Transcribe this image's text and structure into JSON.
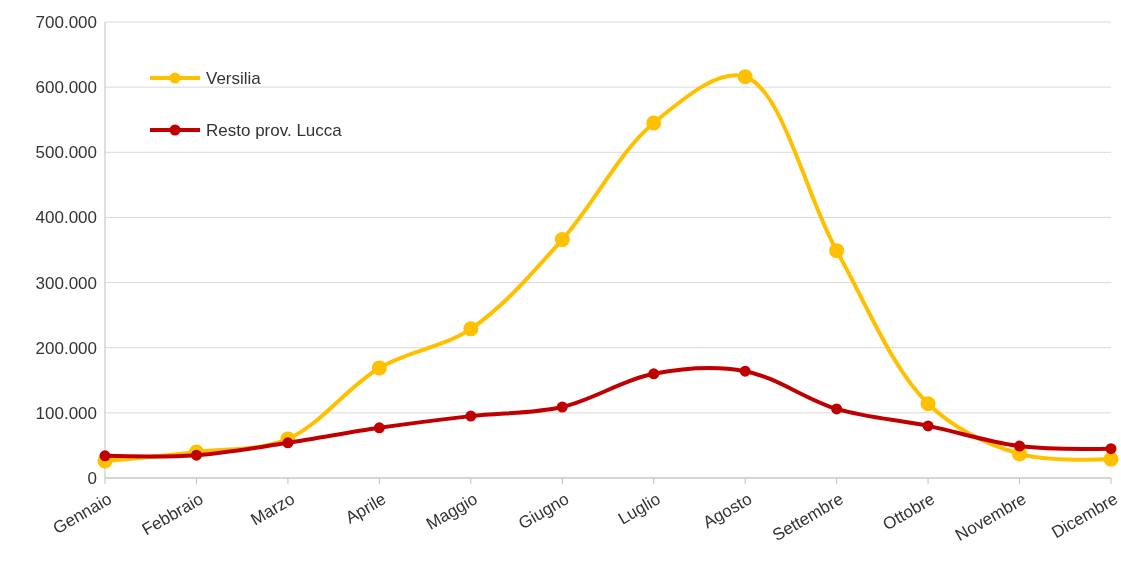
{
  "chart_data": {
    "type": "line",
    "categories": [
      "Gennaio",
      "Febbraio",
      "Marzo",
      "Aprile",
      "Maggio",
      "Giugno",
      "Luglio",
      "Agosto",
      "Settembre",
      "Ottobre",
      "Novembre",
      "Dicembre"
    ],
    "series": [
      {
        "name": "Versilia",
        "color": "#ffc000",
        "values": [
          26000,
          40000,
          60000,
          169000,
          229000,
          366000,
          545000,
          616000,
          349000,
          114000,
          37000,
          29000
        ]
      },
      {
        "name": "Resto prov. Lucca",
        "color": "#c00000",
        "values": [
          34000,
          35000,
          54000,
          77000,
          95000,
          109000,
          160000,
          164000,
          106000,
          80000,
          49000,
          45000
        ]
      }
    ],
    "ylim": [
      0,
      700000
    ],
    "yticks": [
      0,
      {
        "value": 100000,
        "label": "100.000"
      },
      {
        "value": 200000,
        "label": "200.000"
      },
      {
        "value": 300000,
        "label": "300.000"
      },
      {
        "value": 400000,
        "label": "400.000"
      },
      {
        "value": 500000,
        "label": "500.000"
      },
      {
        "value": 600000,
        "label": "600.000"
      },
      {
        "value": 700000,
        "label": "700.000"
      }
    ],
    "grid": "y",
    "legend": "top left",
    "marker": "circle",
    "line_style": "solid"
  }
}
